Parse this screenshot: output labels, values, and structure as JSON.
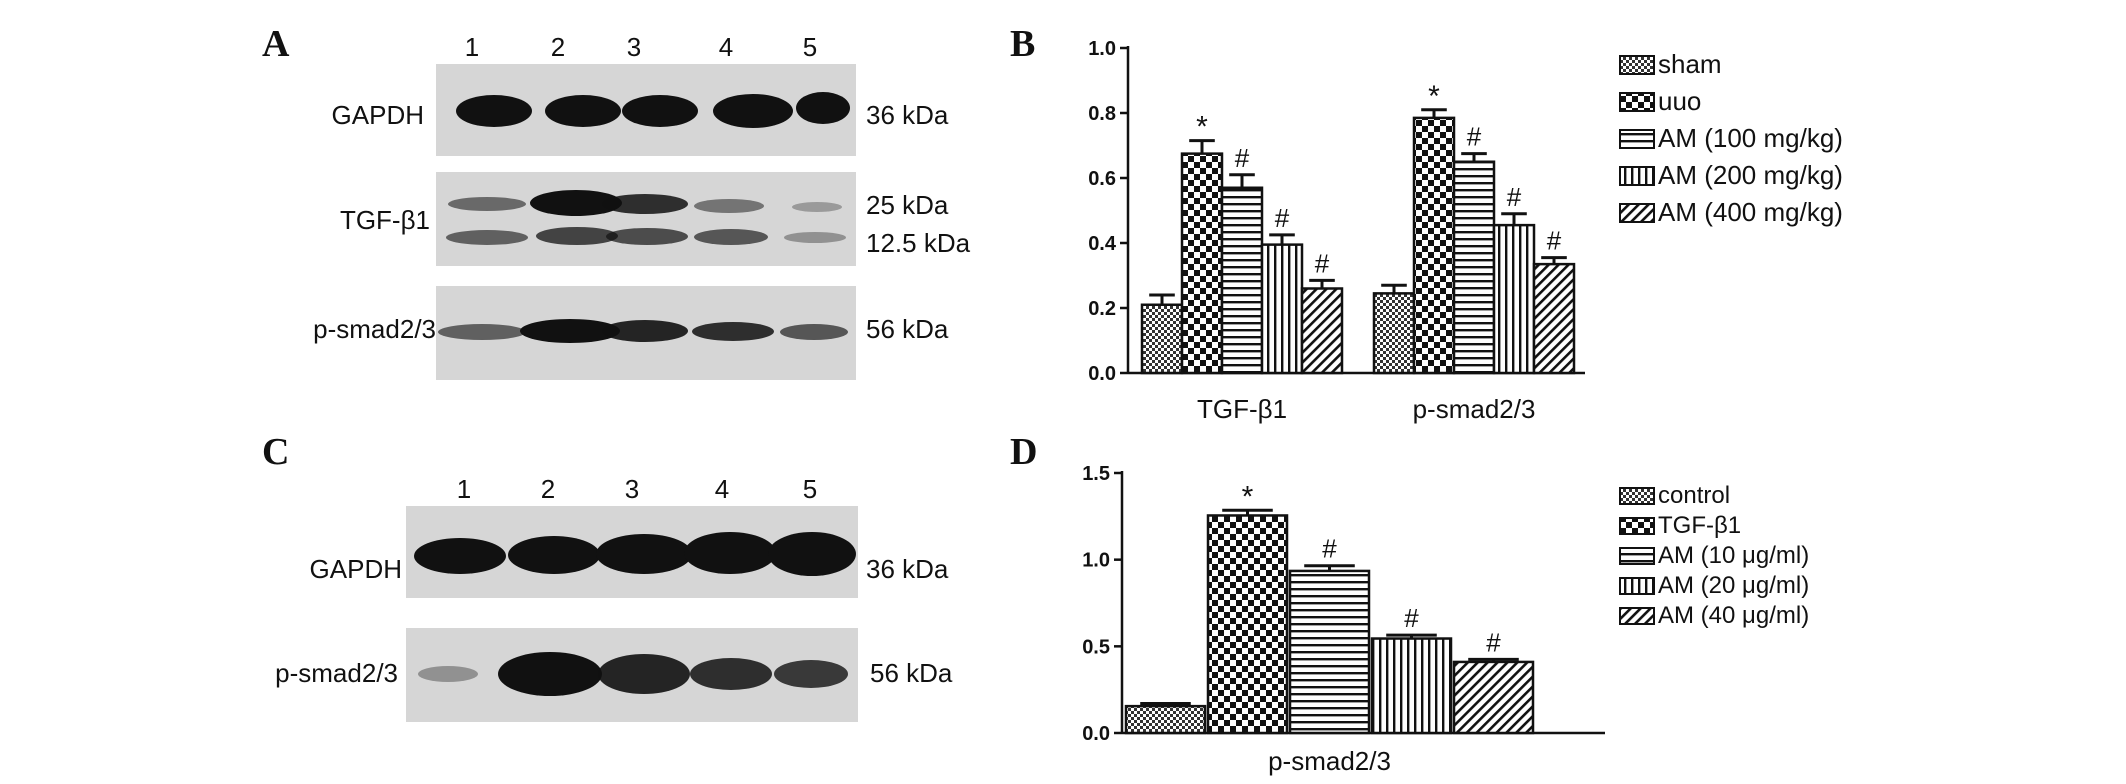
{
  "panels": {
    "A": {
      "letter": "A",
      "lanes": [
        "1",
        "2",
        "3",
        "4",
        "5"
      ],
      "blots": [
        {
          "name": "GAPDH",
          "mw": [
            "36 kDa"
          ],
          "intensity": [
            [
              1,
              1,
              1,
              1,
              0.95
            ]
          ]
        },
        {
          "name": "TGF-β1",
          "mw": [
            "25 kDa",
            "12.5 kDa"
          ],
          "intensity": [
            [
              0.45,
              1,
              0.85,
              0.45,
              0.25
            ],
            [
              0.5,
              0.7,
              0.6,
              0.55,
              0.3
            ]
          ]
        },
        {
          "name": "p-smad2/3",
          "mw": [
            "56 kDa"
          ],
          "intensity": [
            [
              0.45,
              1,
              0.85,
              0.8,
              0.55
            ]
          ]
        }
      ]
    },
    "C": {
      "letter": "C",
      "lanes": [
        "1",
        "2",
        "3",
        "4",
        "5"
      ],
      "blots": [
        {
          "name": "GAPDH",
          "mw": [
            "36 kDa"
          ],
          "intensity": [
            [
              1,
              1,
              1,
              1,
              1
            ]
          ]
        },
        {
          "name": "p-smad2/3",
          "mw": [
            "56 kDa"
          ],
          "intensity": [
            [
              0.25,
              1,
              0.9,
              0.75,
              0.65
            ]
          ]
        }
      ]
    }
  },
  "chart_data": [
    {
      "panel": "B",
      "type": "bar",
      "categories": [
        "TGF-β1",
        "p-smad2/3"
      ],
      "ylim": [
        0,
        1.0
      ],
      "yticks": [
        "0.0",
        "0.2",
        "0.4",
        "0.6",
        "0.8",
        "1.0"
      ],
      "series": [
        {
          "name": "sham",
          "pattern": "fine",
          "values": [
            0.21,
            0.245
          ],
          "errors": [
            0.03,
            0.025
          ],
          "marks": [
            "",
            ""
          ]
        },
        {
          "name": "uuo",
          "pattern": "checker",
          "values": [
            0.675,
            0.785
          ],
          "errors": [
            0.04,
            0.025
          ],
          "marks": [
            "*",
            "*"
          ]
        },
        {
          "name": "AM (100 mg/kg)",
          "pattern": "hlines",
          "values": [
            0.57,
            0.65
          ],
          "errors": [
            0.04,
            0.025
          ],
          "marks": [
            "#",
            "#"
          ]
        },
        {
          "name": "AM (200 mg/kg)",
          "pattern": "vlines",
          "values": [
            0.395,
            0.455
          ],
          "errors": [
            0.03,
            0.035
          ],
          "marks": [
            "#",
            "#"
          ]
        },
        {
          "name": "AM (400 mg/kg)",
          "pattern": "diag",
          "values": [
            0.26,
            0.335
          ],
          "errors": [
            0.025,
            0.02
          ],
          "marks": [
            "#",
            "#"
          ]
        }
      ],
      "legend_position": "right"
    },
    {
      "panel": "D",
      "type": "bar",
      "categories": [
        "p-smad2/3"
      ],
      "ylim": [
        0,
        1.5
      ],
      "yticks": [
        "0.0",
        "0.5",
        "1.0",
        "1.5"
      ],
      "series": [
        {
          "name": "control",
          "pattern": "fine",
          "values": [
            0.155
          ],
          "errors": [
            0.015
          ],
          "marks": [
            ""
          ]
        },
        {
          "name": "TGF-β1",
          "pattern": "checker",
          "values": [
            1.255
          ],
          "errors": [
            0.03
          ],
          "marks": [
            "*"
          ]
        },
        {
          "name": "AM (10 μg/ml)",
          "pattern": "hlines",
          "values": [
            0.935
          ],
          "errors": [
            0.03
          ],
          "marks": [
            "#"
          ]
        },
        {
          "name": "AM (20 μg/ml)",
          "pattern": "vlines",
          "values": [
            0.545
          ],
          "errors": [
            0.02
          ],
          "marks": [
            "#"
          ]
        },
        {
          "name": "AM (40 μg/ml)",
          "pattern": "diag",
          "values": [
            0.41
          ],
          "errors": [
            0.015
          ],
          "marks": [
            "#"
          ]
        }
      ],
      "legend_position": "right"
    }
  ]
}
